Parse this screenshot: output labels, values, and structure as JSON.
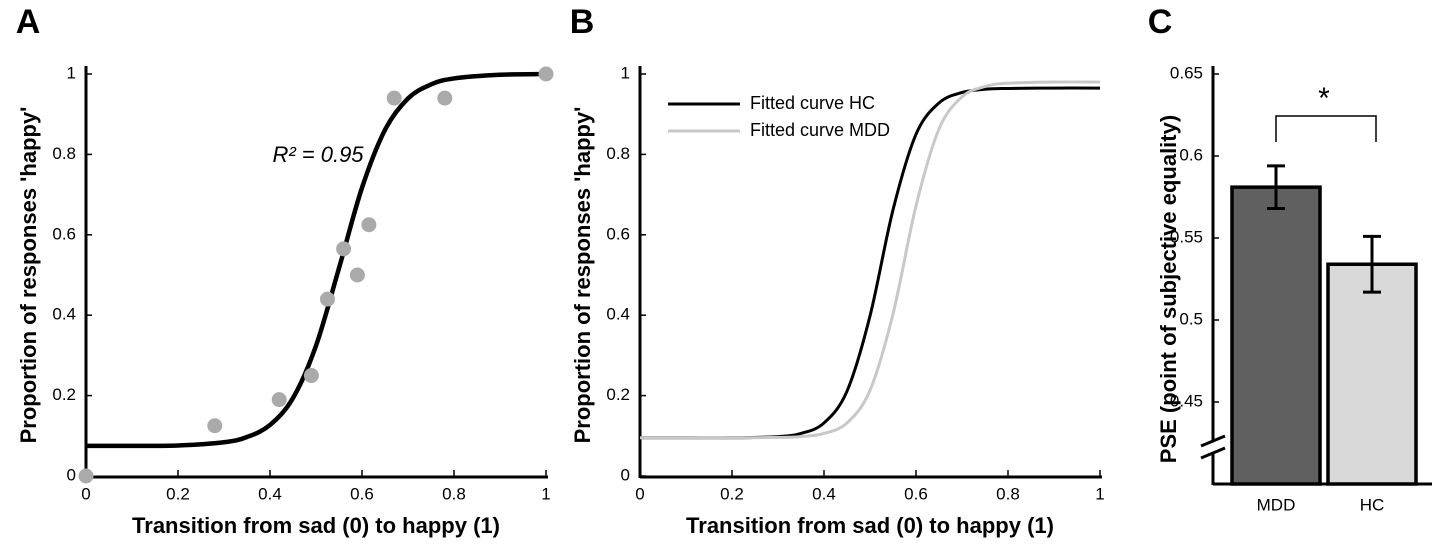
{
  "chart_data": [
    {
      "type": "scatter",
      "label": "A",
      "x_label": "Transition from sad (0) to happy (1)",
      "y_label": "Proportion of responses 'happy'",
      "annotation": "R² = 0.95",
      "xlim": [
        0,
        1
      ],
      "ylim": [
        0,
        1
      ],
      "xticks": [
        0,
        0.2,
        0.4,
        0.6,
        0.8,
        1
      ],
      "yticks": [
        0,
        0.2,
        0.4,
        0.6,
        0.8,
        1
      ],
      "x": [
        0,
        0.28,
        0.42,
        0.49,
        0.525,
        0.56,
        0.59,
        0.615,
        0.67,
        0.78,
        1
      ],
      "values": [
        0,
        0.125,
        0.19,
        0.25,
        0.44,
        0.565,
        0.5,
        0.625,
        0.94,
        0.94,
        1
      ],
      "color": "#aaaaaa",
      "fit": {
        "color": "#000000",
        "x": [
          0,
          0.1,
          0.2,
          0.3,
          0.35,
          0.4,
          0.45,
          0.5,
          0.55,
          0.6,
          0.65,
          0.7,
          0.75,
          0.8,
          0.9,
          1
        ],
        "values": [
          0.075,
          0.075,
          0.076,
          0.084,
          0.097,
          0.127,
          0.194,
          0.324,
          0.517,
          0.717,
          0.861,
          0.939,
          0.974,
          0.989,
          0.998,
          1
        ]
      }
    },
    {
      "type": "line",
      "label": "B",
      "x_label": "Transition from sad (0) to happy (1)",
      "y_label": "Proportion of responses 'happy'",
      "xlim": [
        0,
        1
      ],
      "ylim": [
        0,
        1
      ],
      "xticks": [
        0,
        0.2,
        0.4,
        0.6,
        0.8,
        1
      ],
      "yticks": [
        0,
        0.2,
        0.4,
        0.6,
        0.8,
        1
      ],
      "series": [
        {
          "name": "Fitted curve HC",
          "color": "#000000",
          "x": [
            0,
            0.1,
            0.2,
            0.3,
            0.35,
            0.4,
            0.45,
            0.5,
            0.55,
            0.6,
            0.65,
            0.7,
            0.75,
            0.8,
            0.9,
            1
          ],
          "values": [
            0.095,
            0.095,
            0.095,
            0.098,
            0.106,
            0.132,
            0.211,
            0.398,
            0.662,
            0.85,
            0.928,
            0.954,
            0.962,
            0.964,
            0.965,
            0.965
          ]
        },
        {
          "name": "Fitted curve MDD",
          "color": "#c8c8c8",
          "x": [
            0,
            0.1,
            0.2,
            0.3,
            0.35,
            0.4,
            0.45,
            0.5,
            0.55,
            0.6,
            0.65,
            0.7,
            0.75,
            0.8,
            0.9,
            1
          ],
          "values": [
            0.095,
            0.095,
            0.095,
            0.096,
            0.098,
            0.106,
            0.132,
            0.213,
            0.403,
            0.672,
            0.863,
            0.943,
            0.969,
            0.977,
            0.98,
            0.98
          ]
        }
      ]
    },
    {
      "type": "bar",
      "label": "C",
      "y_label": "PSE (point of subjective equality)",
      "annotation": "*",
      "categories": [
        "MDD",
        "HC"
      ],
      "values": [
        0.581,
        0.534
      ],
      "errors": [
        0.013,
        0.017
      ],
      "colors": [
        "#606060",
        "#d9d9d9"
      ],
      "ylim": [
        0.4,
        0.65
      ],
      "yticks": [
        0.45,
        0.5,
        0.55,
        0.6,
        0.65
      ],
      "axis_break": true
    }
  ]
}
